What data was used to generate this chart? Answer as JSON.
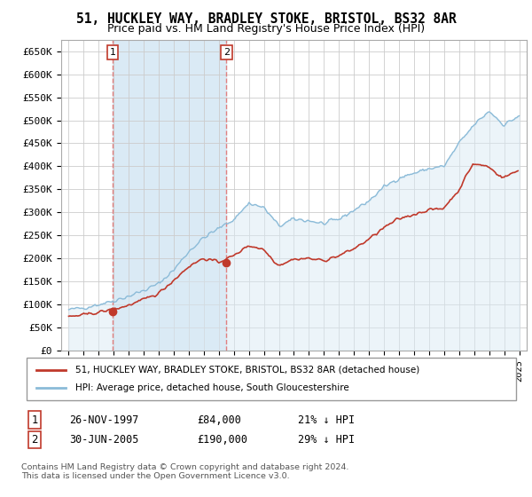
{
  "title": "51, HUCKLEY WAY, BRADLEY STOKE, BRISTOL, BS32 8AR",
  "subtitle": "Price paid vs. HM Land Registry's House Price Index (HPI)",
  "title_fontsize": 10.5,
  "subtitle_fontsize": 9,
  "ylabel_ticks": [
    "£0",
    "£50K",
    "£100K",
    "£150K",
    "£200K",
    "£250K",
    "£300K",
    "£350K",
    "£400K",
    "£450K",
    "£500K",
    "£550K",
    "£600K",
    "£650K"
  ],
  "ytick_values": [
    0,
    50000,
    100000,
    150000,
    200000,
    250000,
    300000,
    350000,
    400000,
    450000,
    500000,
    550000,
    600000,
    650000
  ],
  "ylim": [
    0,
    675000
  ],
  "hpi_color": "#8bbbd8",
  "hpi_fill_color": "#daeaf5",
  "price_color": "#c0392b",
  "vline_color": "#e08080",
  "point1_x": 1997.917,
  "point1_y": 84000,
  "point1_date": "26-NOV-1997",
  "point1_price": 84000,
  "point1_label": "21% ↓ HPI",
  "point2_x": 2005.5,
  "point2_y": 190000,
  "point2_date": "30-JUN-2005",
  "point2_price": 190000,
  "point2_label": "29% ↓ HPI",
  "legend_line1": "51, HUCKLEY WAY, BRADLEY STOKE, BRISTOL, BS32 8AR (detached house)",
  "legend_line2": "HPI: Average price, detached house, South Gloucestershire",
  "footnote": "Contains HM Land Registry data © Crown copyright and database right 2024.\nThis data is licensed under the Open Government Licence v3.0.",
  "background_color": "#ffffff",
  "grid_color": "#cccccc",
  "xlim_left": 1994.5,
  "xlim_right": 2025.5
}
